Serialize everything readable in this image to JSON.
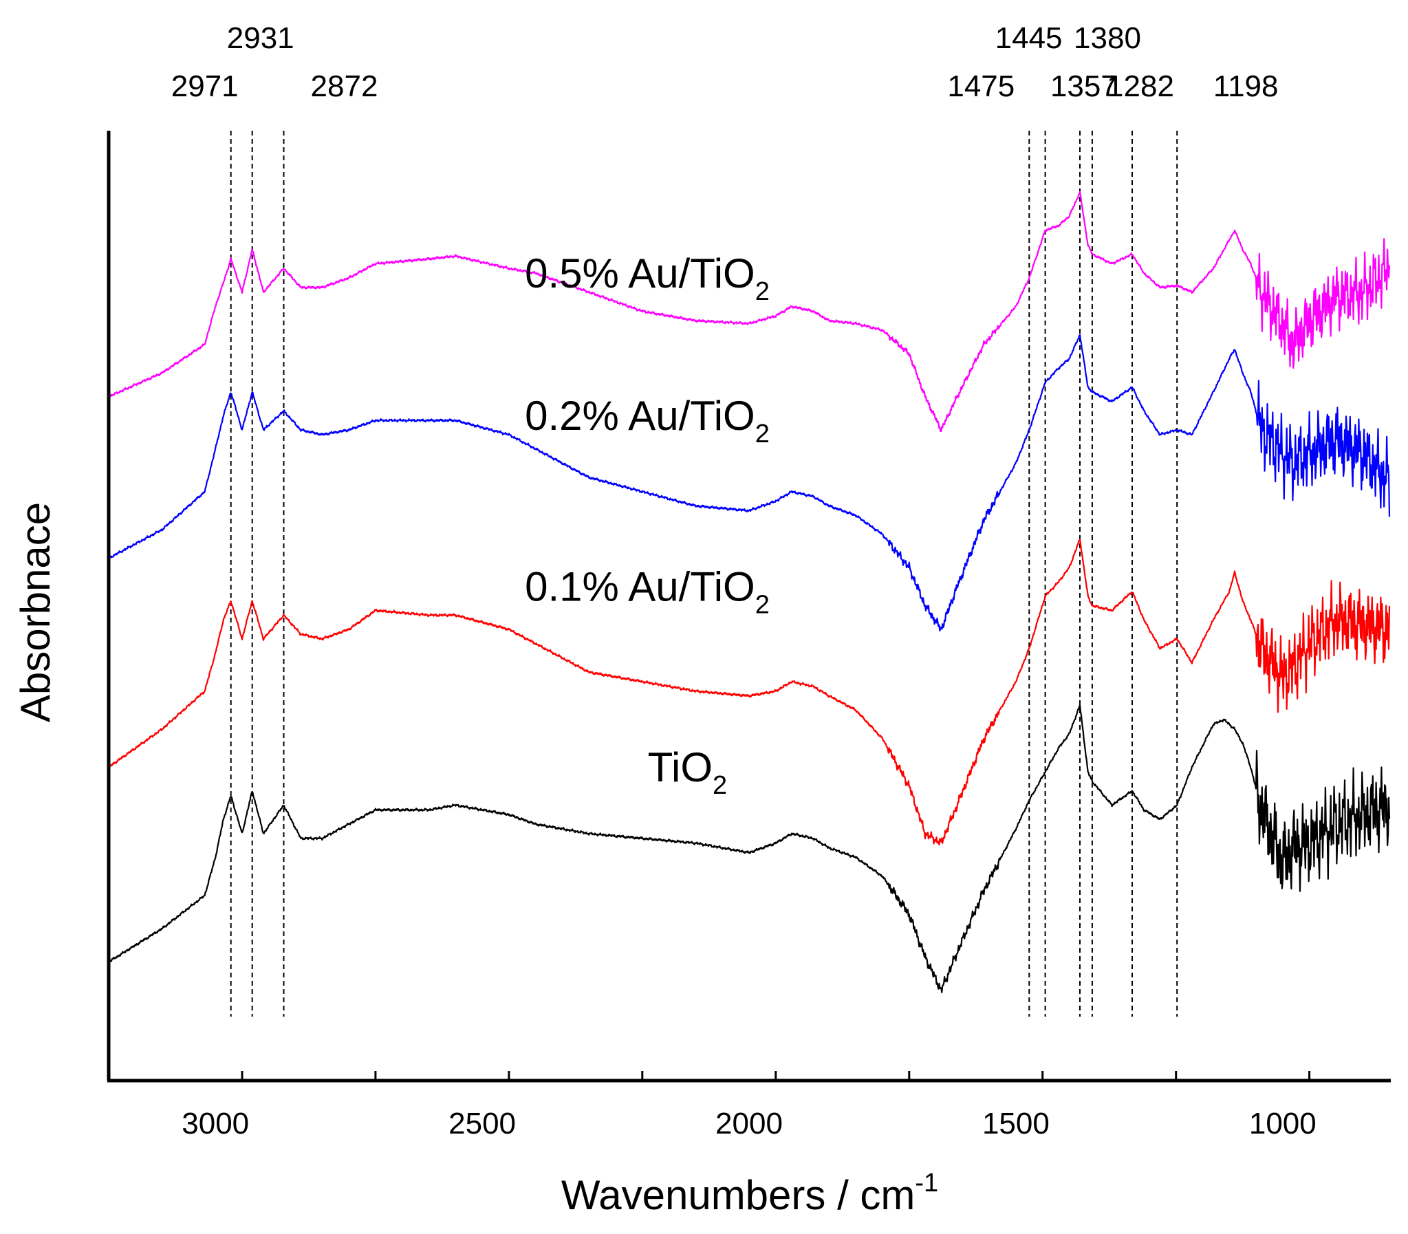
{
  "chart_data": {
    "type": "line",
    "title": "",
    "xlabel": "Wavenumbers / cm",
    "xlabel_sup": "-1",
    "ylabel": "Absorbnace",
    "xlim": [
      3200,
      800
    ],
    "ylim": [
      0,
      10
    ],
    "x_ticks": [
      3000,
      2500,
      2000,
      1500,
      1000
    ],
    "x_tick_labels": [
      "3000",
      "2500",
      "2000",
      "1500",
      "1000"
    ],
    "y_ticks": [],
    "grid": false,
    "legend": "none",
    "peak_lines": [
      2971,
      2931,
      2872,
      1475,
      1445,
      1380,
      1357,
      1282,
      1198
    ],
    "peak_labels": [
      {
        "text": "2971",
        "x": 2971,
        "row": 2
      },
      {
        "text": "2931",
        "x": 2931,
        "row": 1
      },
      {
        "text": "2872",
        "x": 2872,
        "row": 2
      },
      {
        "text": "1445",
        "x": 1445,
        "row": 1
      },
      {
        "text": "1380",
        "x": 1380,
        "row": 1
      },
      {
        "text": "1475",
        "x": 1475,
        "row": 2
      },
      {
        "text": "1357",
        "x": 1357,
        "row": 2
      },
      {
        "text": "1282",
        "x": 1282,
        "row": 2
      },
      {
        "text": "1198",
        "x": 1198,
        "row": 2
      }
    ],
    "series": [
      {
        "name": "0.5% Au/TiO2",
        "label_main": "0.5% Au/TiO",
        "label_sub": "2",
        "color": "#ff00ff",
        "label_x": 2420,
        "label_y": 8.35,
        "noise": [
          1.4,
          0.7
        ],
        "points": [
          [
            3200,
            7.2
          ],
          [
            3100,
            7.45
          ],
          [
            3020,
            7.75
          ],
          [
            3000,
            8.15
          ],
          [
            2985,
            8.4
          ],
          [
            2971,
            8.65
          ],
          [
            2950,
            8.3
          ],
          [
            2931,
            8.75
          ],
          [
            2910,
            8.3
          ],
          [
            2872,
            8.55
          ],
          [
            2840,
            8.35
          ],
          [
            2800,
            8.35
          ],
          [
            2750,
            8.45
          ],
          [
            2700,
            8.6
          ],
          [
            2600,
            8.65
          ],
          [
            2550,
            8.68
          ],
          [
            2450,
            8.55
          ],
          [
            2400,
            8.5
          ],
          [
            2300,
            8.3
          ],
          [
            2200,
            8.1
          ],
          [
            2100,
            8.0
          ],
          [
            2000,
            7.97
          ],
          [
            1950,
            8.05
          ],
          [
            1920,
            8.15
          ],
          [
            1880,
            8.1
          ],
          [
            1850,
            8.0
          ],
          [
            1800,
            7.97
          ],
          [
            1750,
            7.9
          ],
          [
            1700,
            7.65
          ],
          [
            1670,
            7.2
          ],
          [
            1640,
            6.85
          ],
          [
            1610,
            7.2
          ],
          [
            1560,
            7.75
          ],
          [
            1500,
            8.15
          ],
          [
            1475,
            8.45
          ],
          [
            1445,
            8.95
          ],
          [
            1420,
            9.0
          ],
          [
            1400,
            9.1
          ],
          [
            1380,
            9.35
          ],
          [
            1365,
            8.8
          ],
          [
            1357,
            8.7
          ],
          [
            1320,
            8.6
          ],
          [
            1282,
            8.7
          ],
          [
            1260,
            8.5
          ],
          [
            1230,
            8.35
          ],
          [
            1198,
            8.37
          ],
          [
            1170,
            8.3
          ],
          [
            1130,
            8.55
          ],
          [
            1100,
            8.85
          ],
          [
            1090,
            8.95
          ],
          [
            1075,
            8.75
          ],
          [
            1060,
            8.6
          ],
          [
            1040,
            8.3
          ],
          [
            1000,
            7.95
          ],
          [
            980,
            7.75
          ],
          [
            950,
            8.0
          ],
          [
            900,
            8.25
          ],
          [
            850,
            8.3
          ],
          [
            800,
            8.55
          ]
        ]
      },
      {
        "name": "0.2% Au/TiO2",
        "label_main": "0.2% Au/TiO",
        "label_sub": "2",
        "color": "#0000ff",
        "label_x": 2420,
        "label_y": 6.85,
        "noise": [
          1.6,
          1.1
        ],
        "points": [
          [
            3200,
            5.5
          ],
          [
            3100,
            5.8
          ],
          [
            3020,
            6.2
          ],
          [
            3000,
            6.65
          ],
          [
            2985,
            7.0
          ],
          [
            2971,
            7.25
          ],
          [
            2950,
            6.85
          ],
          [
            2931,
            7.25
          ],
          [
            2910,
            6.85
          ],
          [
            2872,
            7.05
          ],
          [
            2840,
            6.85
          ],
          [
            2800,
            6.8
          ],
          [
            2750,
            6.85
          ],
          [
            2700,
            6.95
          ],
          [
            2600,
            6.95
          ],
          [
            2550,
            6.95
          ],
          [
            2450,
            6.8
          ],
          [
            2400,
            6.65
          ],
          [
            2300,
            6.35
          ],
          [
            2200,
            6.2
          ],
          [
            2100,
            6.05
          ],
          [
            2000,
            6.0
          ],
          [
            1950,
            6.1
          ],
          [
            1920,
            6.2
          ],
          [
            1880,
            6.15
          ],
          [
            1850,
            6.05
          ],
          [
            1800,
            5.95
          ],
          [
            1750,
            5.75
          ],
          [
            1700,
            5.4
          ],
          [
            1670,
            5.0
          ],
          [
            1640,
            4.75
          ],
          [
            1610,
            5.2
          ],
          [
            1560,
            5.9
          ],
          [
            1500,
            6.5
          ],
          [
            1475,
            6.85
          ],
          [
            1445,
            7.35
          ],
          [
            1420,
            7.5
          ],
          [
            1400,
            7.6
          ],
          [
            1380,
            7.85
          ],
          [
            1365,
            7.3
          ],
          [
            1357,
            7.25
          ],
          [
            1320,
            7.15
          ],
          [
            1282,
            7.3
          ],
          [
            1260,
            7.05
          ],
          [
            1230,
            6.8
          ],
          [
            1198,
            6.85
          ],
          [
            1170,
            6.8
          ],
          [
            1130,
            7.25
          ],
          [
            1100,
            7.6
          ],
          [
            1090,
            7.7
          ],
          [
            1075,
            7.45
          ],
          [
            1060,
            7.25
          ],
          [
            1040,
            6.85
          ],
          [
            1000,
            6.6
          ],
          [
            980,
            6.5
          ],
          [
            950,
            6.6
          ],
          [
            900,
            6.75
          ],
          [
            850,
            6.6
          ],
          [
            800,
            6.3
          ]
        ]
      },
      {
        "name": "0.1% Au/TiO2",
        "label_main": "0.1% Au/TiO",
        "label_sub": "2",
        "color": "#ff0000",
        "label_x": 2420,
        "label_y": 5.05,
        "noise": [
          1.6,
          1.1
        ],
        "points": [
          [
            3200,
            3.3
          ],
          [
            3100,
            3.7
          ],
          [
            3020,
            4.1
          ],
          [
            3000,
            4.5
          ],
          [
            2985,
            4.85
          ],
          [
            2971,
            5.05
          ],
          [
            2950,
            4.65
          ],
          [
            2931,
            5.05
          ],
          [
            2910,
            4.65
          ],
          [
            2872,
            4.9
          ],
          [
            2840,
            4.7
          ],
          [
            2800,
            4.65
          ],
          [
            2750,
            4.75
          ],
          [
            2700,
            4.95
          ],
          [
            2600,
            4.9
          ],
          [
            2550,
            4.9
          ],
          [
            2450,
            4.75
          ],
          [
            2400,
            4.6
          ],
          [
            2300,
            4.3
          ],
          [
            2200,
            4.2
          ],
          [
            2100,
            4.1
          ],
          [
            2000,
            4.05
          ],
          [
            1950,
            4.1
          ],
          [
            1920,
            4.2
          ],
          [
            1880,
            4.15
          ],
          [
            1850,
            4.05
          ],
          [
            1800,
            3.9
          ],
          [
            1750,
            3.6
          ],
          [
            1700,
            3.1
          ],
          [
            1670,
            2.6
          ],
          [
            1640,
            2.5
          ],
          [
            1610,
            2.9
          ],
          [
            1560,
            3.6
          ],
          [
            1500,
            4.2
          ],
          [
            1475,
            4.55
          ],
          [
            1445,
            5.1
          ],
          [
            1420,
            5.25
          ],
          [
            1400,
            5.4
          ],
          [
            1380,
            5.7
          ],
          [
            1365,
            5.1
          ],
          [
            1357,
            5.0
          ],
          [
            1320,
            4.95
          ],
          [
            1282,
            5.15
          ],
          [
            1260,
            4.85
          ],
          [
            1230,
            4.55
          ],
          [
            1198,
            4.65
          ],
          [
            1170,
            4.4
          ],
          [
            1130,
            4.85
          ],
          [
            1100,
            5.15
          ],
          [
            1090,
            5.35
          ],
          [
            1075,
            5.05
          ],
          [
            1060,
            4.85
          ],
          [
            1040,
            4.55
          ],
          [
            1000,
            4.25
          ],
          [
            980,
            4.35
          ],
          [
            950,
            4.6
          ],
          [
            900,
            4.85
          ],
          [
            850,
            4.8
          ],
          [
            800,
            4.75
          ]
        ]
      },
      {
        "name": "TiO2",
        "label_main": "TiO",
        "label_sub": "2",
        "color": "#000000",
        "label_x": 2190,
        "label_y": 3.15,
        "noise": [
          1.8,
          1.2
        ],
        "points": [
          [
            3200,
            1.25
          ],
          [
            3100,
            1.6
          ],
          [
            3020,
            1.95
          ],
          [
            3000,
            2.35
          ],
          [
            2985,
            2.75
          ],
          [
            2971,
            3.0
          ],
          [
            2950,
            2.6
          ],
          [
            2931,
            3.05
          ],
          [
            2910,
            2.6
          ],
          [
            2872,
            2.9
          ],
          [
            2840,
            2.55
          ],
          [
            2800,
            2.55
          ],
          [
            2750,
            2.7
          ],
          [
            2700,
            2.85
          ],
          [
            2600,
            2.85
          ],
          [
            2550,
            2.9
          ],
          [
            2450,
            2.8
          ],
          [
            2400,
            2.7
          ],
          [
            2300,
            2.6
          ],
          [
            2200,
            2.55
          ],
          [
            2100,
            2.5
          ],
          [
            2000,
            2.4
          ],
          [
            1950,
            2.5
          ],
          [
            1920,
            2.6
          ],
          [
            1880,
            2.55
          ],
          [
            1850,
            2.45
          ],
          [
            1800,
            2.35
          ],
          [
            1750,
            2.15
          ],
          [
            1700,
            1.75
          ],
          [
            1670,
            1.3
          ],
          [
            1640,
            0.95
          ],
          [
            1610,
            1.35
          ],
          [
            1560,
            2.0
          ],
          [
            1500,
            2.65
          ],
          [
            1475,
            2.95
          ],
          [
            1445,
            3.25
          ],
          [
            1420,
            3.5
          ],
          [
            1400,
            3.65
          ],
          [
            1380,
            3.95
          ],
          [
            1365,
            3.25
          ],
          [
            1357,
            3.15
          ],
          [
            1320,
            2.9
          ],
          [
            1282,
            3.05
          ],
          [
            1260,
            2.85
          ],
          [
            1230,
            2.75
          ],
          [
            1198,
            2.9
          ],
          [
            1170,
            3.3
          ],
          [
            1130,
            3.75
          ],
          [
            1110,
            3.8
          ],
          [
            1090,
            3.7
          ],
          [
            1075,
            3.55
          ],
          [
            1060,
            3.3
          ],
          [
            1040,
            2.85
          ],
          [
            1000,
            2.3
          ],
          [
            980,
            2.45
          ],
          [
            950,
            2.5
          ],
          [
            900,
            2.7
          ],
          [
            850,
            2.8
          ],
          [
            800,
            2.9
          ]
        ]
      }
    ]
  }
}
